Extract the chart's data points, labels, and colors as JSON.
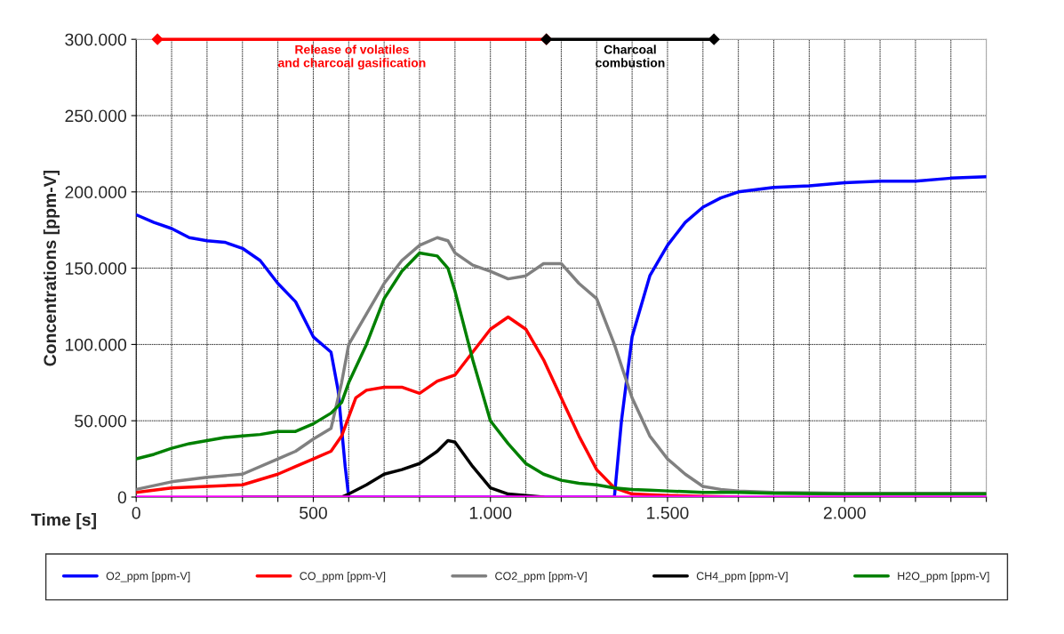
{
  "chart_data": {
    "type": "line",
    "xlabel": "Time [s]",
    "ylabel": "Concentrations [ppm-V]",
    "xlim": [
      0,
      2400
    ],
    "ylim": [
      0,
      300000
    ],
    "xticks": [
      0,
      {
        "value": 100,
        "label": null
      },
      {
        "value": 200,
        "label": null
      },
      {
        "value": 300,
        "label": null
      },
      {
        "value": 400,
        "label": null
      },
      500,
      {
        "value": 600,
        "label": null
      },
      {
        "value": 700,
        "label": null
      },
      {
        "value": 800,
        "label": null
      },
      {
        "value": 900,
        "label": null
      },
      {
        "value": 1000,
        "label": "1.000"
      },
      {
        "value": 1100,
        "label": null
      },
      {
        "value": 1200,
        "label": null
      },
      {
        "value": 1300,
        "label": null
      },
      {
        "value": 1400,
        "label": null
      },
      {
        "value": 1500,
        "label": "1.500"
      },
      {
        "value": 1600,
        "label": null
      },
      {
        "value": 1700,
        "label": null
      },
      {
        "value": 1800,
        "label": null
      },
      {
        "value": 1900,
        "label": null
      },
      {
        "value": 2000,
        "label": "2.000"
      },
      {
        "value": 2100,
        "label": null
      },
      {
        "value": 2200,
        "label": null
      },
      {
        "value": 2300,
        "label": null
      },
      {
        "value": 2400,
        "label": null
      }
    ],
    "yticks": [
      0,
      {
        "value": 50000,
        "label": "50.000"
      },
      {
        "value": 100000,
        "label": "100.000"
      },
      {
        "value": 150000,
        "label": "150.000"
      },
      {
        "value": 200000,
        "label": "200.000"
      },
      {
        "value": 250000,
        "label": "250.000"
      },
      {
        "value": 300000,
        "label": "300.000"
      }
    ],
    "grid": true,
    "legend": "bottom",
    "line_style": "solid",
    "series": [
      {
        "name": "O2_ppm [ppm-V]",
        "color": "#0000ff",
        "x": [
          0,
          50,
          100,
          150,
          200,
          250,
          300,
          350,
          400,
          450,
          500,
          550,
          570,
          590,
          600,
          700,
          800,
          900,
          1000,
          1100,
          1200,
          1300,
          1350,
          1370,
          1400,
          1450,
          1500,
          1550,
          1600,
          1650,
          1700,
          1800,
          1900,
          2000,
          2100,
          2200,
          2300,
          2400
        ],
        "values": [
          185000,
          180000,
          176000,
          170000,
          168000,
          167000,
          163000,
          155000,
          140000,
          128000,
          105000,
          95000,
          70000,
          20000,
          0,
          0,
          0,
          0,
          0,
          0,
          0,
          0,
          0,
          50000,
          105000,
          145000,
          165000,
          180000,
          190000,
          196000,
          200000,
          203000,
          204000,
          206000,
          207000,
          207000,
          209000,
          210000
        ]
      },
      {
        "name": "CO_ppm [ppm-V]",
        "color": "#ff0000",
        "x": [
          0,
          100,
          200,
          300,
          400,
          450,
          500,
          550,
          580,
          620,
          650,
          700,
          750,
          800,
          850,
          900,
          950,
          1000,
          1050,
          1100,
          1150,
          1200,
          1250,
          1300,
          1350,
          1400,
          1500,
          1600,
          1700
        ],
        "values": [
          3000,
          6000,
          7000,
          8000,
          15000,
          20000,
          25000,
          30000,
          40000,
          65000,
          70000,
          72000,
          72000,
          68000,
          76000,
          80000,
          95000,
          110000,
          118000,
          110000,
          90000,
          65000,
          40000,
          18000,
          6000,
          2000,
          1000,
          500,
          0
        ]
      },
      {
        "name": "CO2_ppm [ppm-V]",
        "color": "#808080",
        "x": [
          0,
          100,
          200,
          300,
          400,
          450,
          500,
          550,
          580,
          600,
          650,
          700,
          750,
          800,
          850,
          880,
          900,
          950,
          1000,
          1050,
          1100,
          1150,
          1200,
          1250,
          1300,
          1350,
          1400,
          1450,
          1500,
          1550,
          1600,
          1650,
          1700,
          1800,
          2000,
          2400
        ],
        "values": [
          5000,
          10000,
          13000,
          15000,
          25000,
          30000,
          38000,
          45000,
          75000,
          100000,
          120000,
          140000,
          155000,
          165000,
          170000,
          168000,
          160000,
          152000,
          148000,
          143000,
          145000,
          153000,
          153000,
          140000,
          130000,
          100000,
          65000,
          40000,
          25000,
          15000,
          7000,
          5000,
          4000,
          3000,
          2500,
          2500
        ]
      },
      {
        "name": "CH4_ppm [ppm-V]",
        "color": "#000000",
        "x": [
          300,
          500,
          580,
          600,
          650,
          700,
          750,
          800,
          850,
          880,
          900,
          950,
          1000,
          1050,
          1100,
          1150
        ],
        "values": [
          0,
          0,
          0,
          2000,
          8000,
          15000,
          18000,
          22000,
          30000,
          37000,
          36000,
          20000,
          6000,
          2000,
          1000,
          0
        ]
      },
      {
        "name": "H2O_ppm [ppm-V]",
        "color": "#008000",
        "x": [
          0,
          50,
          100,
          150,
          200,
          250,
          300,
          350,
          400,
          450,
          500,
          550,
          580,
          600,
          650,
          700,
          750,
          800,
          850,
          880,
          900,
          950,
          1000,
          1050,
          1100,
          1150,
          1200,
          1250,
          1300,
          1350,
          1400,
          1450,
          1500,
          1600,
          1700,
          1800,
          2000,
          2400
        ],
        "values": [
          25000,
          28000,
          32000,
          35000,
          37000,
          39000,
          40000,
          41000,
          43000,
          43000,
          48000,
          55000,
          62000,
          75000,
          100000,
          130000,
          148000,
          160000,
          158000,
          150000,
          135000,
          90000,
          50000,
          35000,
          22000,
          15000,
          11000,
          9000,
          8000,
          6000,
          5000,
          4500,
          4000,
          3000,
          3000,
          2500,
          2000,
          2000
        ]
      },
      {
        "color": "#ff00ff",
        "x": [
          0,
          2400
        ],
        "values": [
          0,
          0
        ]
      },
      {
        "name": "Release of volatiles\nand charcoal gasification",
        "color": "#ff0000",
        "x": [
          60,
          1158
        ],
        "values": [
          300000,
          300000
        ],
        "marker": "diamond"
      },
      {
        "name": "Charcoal\ncombustion",
        "color": "#000000",
        "x": [
          1158,
          1631
        ],
        "values": [
          300000,
          300000
        ],
        "marker": "diamond"
      }
    ]
  }
}
